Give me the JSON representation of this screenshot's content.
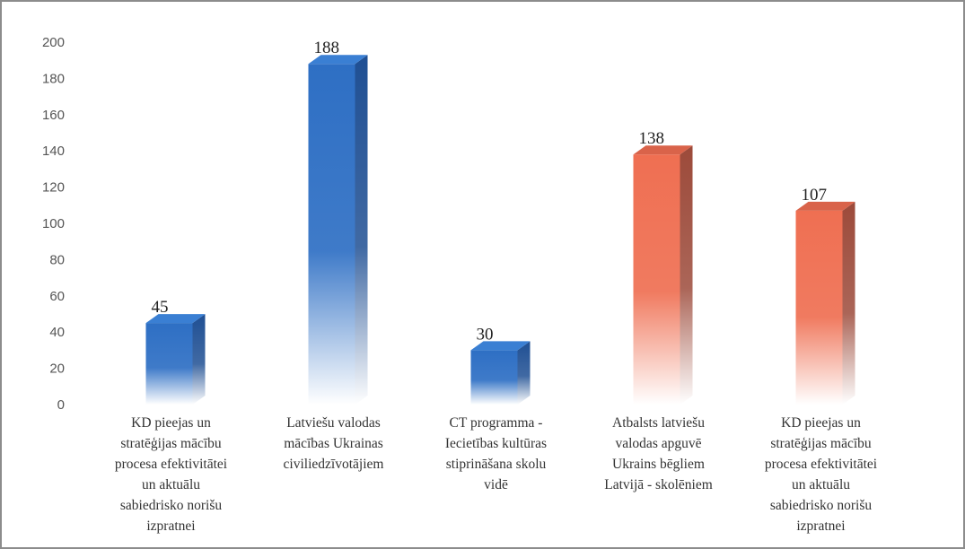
{
  "chart_data": {
    "type": "bar",
    "title": "",
    "xlabel": "",
    "ylabel": "",
    "ylim": [
      0,
      200
    ],
    "ytick_step": 20,
    "yticks": [
      "0",
      "20",
      "40",
      "60",
      "80",
      "100",
      "120",
      "140",
      "160",
      "180",
      "200"
    ],
    "grid": false,
    "legend": "none",
    "categories": [
      [
        "KD pieejas un",
        "stratēģijas mācību",
        "procesa efektivitātei",
        "un aktuālu",
        "sabiedrisko norišu",
        "izpratnei"
      ],
      [
        "Latviešu valodas",
        "mācības Ukrainas",
        "civiliedzīvotājiem"
      ],
      [
        "CT programma -",
        "Iecietības kultūras",
        "stiprināšana skolu",
        "vidē"
      ],
      [
        "Atbalsts latviešu",
        "valodas apguvē",
        "Ukrains bēgliem",
        "Latvijā - skolēniem"
      ],
      [
        "KD pieejas un",
        "stratēģijas mācību",
        "procesa efektivitātei",
        "un aktuālu",
        "sabiedrisko norišu",
        "izpratnei"
      ]
    ],
    "values": [
      45,
      188,
      30,
      138,
      107
    ],
    "data_labels": [
      "45",
      "188",
      "30",
      "138",
      "107"
    ],
    "bar_groups": [
      "blue",
      "blue",
      "blue",
      "orange",
      "orange"
    ],
    "colors": {
      "blue": "#2e6fc4",
      "blue_side": "#1f4f93",
      "blue_top": "#3a7fd3",
      "orange": "#ef6f52",
      "orange_side": "#9c4a3a",
      "orange_top": "#d9634a",
      "frame": "#8c8c8c"
    }
  }
}
